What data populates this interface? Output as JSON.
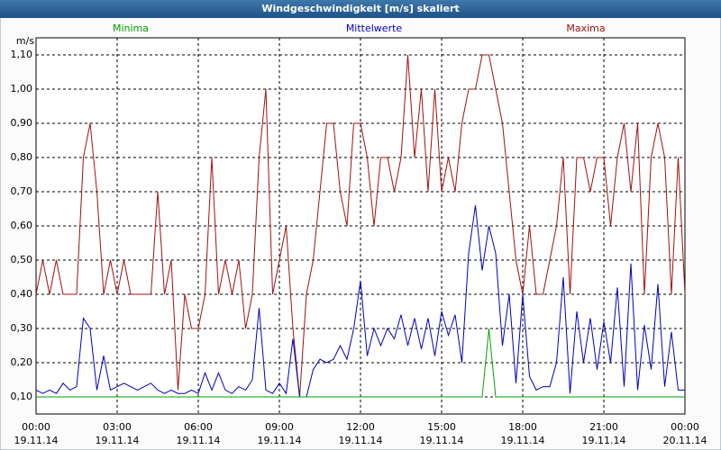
{
  "chart_data": {
    "type": "line",
    "title": "Windgeschwindigkeit [m/s] skaliert",
    "y_unit": "m/s",
    "x": [
      0,
      0.25,
      0.5,
      0.75,
      1,
      1.25,
      1.5,
      1.75,
      2,
      2.25,
      2.5,
      2.75,
      3,
      3.25,
      3.5,
      3.75,
      4,
      4.25,
      4.5,
      4.75,
      5,
      5.25,
      5.5,
      5.75,
      6,
      6.25,
      6.5,
      6.75,
      7,
      7.25,
      7.5,
      7.75,
      8,
      8.25,
      8.5,
      8.75,
      9,
      9.25,
      9.5,
      9.75,
      10,
      10.25,
      10.5,
      10.75,
      11,
      11.25,
      11.5,
      11.75,
      12,
      12.25,
      12.5,
      12.75,
      13,
      13.25,
      13.5,
      13.75,
      14,
      14.25,
      14.5,
      14.75,
      15,
      15.25,
      15.5,
      15.75,
      16,
      16.25,
      16.5,
      16.75,
      17,
      17.25,
      17.5,
      17.75,
      18,
      18.25,
      18.5,
      18.75,
      19,
      19.25,
      19.5,
      19.75,
      20,
      20.25,
      20.5,
      20.75,
      21,
      21.25,
      21.5,
      21.75,
      22,
      22.25,
      22.5,
      22.75,
      23,
      23.25,
      23.5,
      23.75,
      24
    ],
    "series": [
      {
        "name": "Minima",
        "color": "#00a000",
        "values": [
          0.1,
          0.1,
          0.1,
          0.1,
          0.1,
          0.1,
          0.1,
          0.1,
          0.1,
          0.1,
          0.1,
          0.1,
          0.1,
          0.1,
          0.1,
          0.1,
          0.1,
          0.1,
          0.1,
          0.1,
          0.1,
          0.1,
          0.1,
          0.1,
          0.1,
          0.1,
          0.1,
          0.1,
          0.1,
          0.1,
          0.1,
          0.1,
          0.1,
          0.1,
          0.1,
          0.1,
          0.1,
          0.1,
          0.1,
          0.1,
          0.1,
          0.1,
          0.1,
          0.1,
          0.1,
          0.1,
          0.1,
          0.1,
          0.1,
          0.1,
          0.1,
          0.1,
          0.1,
          0.1,
          0.1,
          0.1,
          0.1,
          0.1,
          0.1,
          0.1,
          0.1,
          0.1,
          0.1,
          0.1,
          0.1,
          0.1,
          0.1,
          0.3,
          0.1,
          0.1,
          0.1,
          0.1,
          0.1,
          0.1,
          0.1,
          0.1,
          0.1,
          0.1,
          0.1,
          0.1,
          0.1,
          0.1,
          0.1,
          0.1,
          0.1,
          0.1,
          0.1,
          0.1,
          0.1,
          0.1,
          0.1,
          0.1,
          0.1,
          0.1,
          0.1,
          0.1,
          0.1
        ]
      },
      {
        "name": "Mittelwerte",
        "color": "#0000c0",
        "values": [
          0.12,
          0.11,
          0.12,
          0.11,
          0.14,
          0.12,
          0.13,
          0.33,
          0.3,
          0.12,
          0.22,
          0.12,
          0.13,
          0.14,
          0.13,
          0.12,
          0.13,
          0.14,
          0.12,
          0.11,
          0.12,
          0.11,
          0.11,
          0.12,
          0.11,
          0.17,
          0.12,
          0.17,
          0.12,
          0.11,
          0.13,
          0.12,
          0.15,
          0.36,
          0.12,
          0.11,
          0.14,
          0.11,
          0.27,
          0.1,
          0.1,
          0.18,
          0.21,
          0.2,
          0.21,
          0.25,
          0.21,
          0.3,
          0.44,
          0.22,
          0.3,
          0.25,
          0.3,
          0.27,
          0.34,
          0.25,
          0.33,
          0.24,
          0.33,
          0.22,
          0.35,
          0.28,
          0.34,
          0.2,
          0.52,
          0.66,
          0.47,
          0.6,
          0.52,
          0.25,
          0.4,
          0.14,
          0.4,
          0.16,
          0.12,
          0.13,
          0.13,
          0.2,
          0.45,
          0.11,
          0.35,
          0.2,
          0.33,
          0.18,
          0.32,
          0.2,
          0.42,
          0.13,
          0.49,
          0.12,
          0.31,
          0.18,
          0.43,
          0.13,
          0.29,
          0.12,
          0.12
        ]
      },
      {
        "name": "Maxima",
        "color": "#a01010",
        "values": [
          0.4,
          0.5,
          0.4,
          0.5,
          0.4,
          0.4,
          0.4,
          0.8,
          0.9,
          0.7,
          0.4,
          0.5,
          0.4,
          0.5,
          0.4,
          0.4,
          0.4,
          0.4,
          0.7,
          0.4,
          0.5,
          0.12,
          0.4,
          0.3,
          0.3,
          0.4,
          0.8,
          0.4,
          0.5,
          0.4,
          0.5,
          0.3,
          0.4,
          0.8,
          1.0,
          0.4,
          0.5,
          0.6,
          0.3,
          0.1,
          0.4,
          0.5,
          0.7,
          0.9,
          0.9,
          0.7,
          0.6,
          0.9,
          0.9,
          0.8,
          0.6,
          0.8,
          0.8,
          0.7,
          0.8,
          1.1,
          0.8,
          1.0,
          0.7,
          1.0,
          0.7,
          0.8,
          0.7,
          0.9,
          1.0,
          1.0,
          1.1,
          1.1,
          1.0,
          0.9,
          0.7,
          0.5,
          0.4,
          0.6,
          0.4,
          0.4,
          0.5,
          0.6,
          0.8,
          0.4,
          0.8,
          0.8,
          0.7,
          0.8,
          0.8,
          0.6,
          0.8,
          0.9,
          0.7,
          0.9,
          0.4,
          0.8,
          0.9,
          0.8,
          0.4,
          0.8,
          0.4
        ]
      }
    ],
    "xlim": [
      0,
      24
    ],
    "xticks": [
      {
        "value": 0,
        "label": "00:00"
      },
      {
        "value": 3,
        "label": "03:00"
      },
      {
        "value": 6,
        "label": "06:00"
      },
      {
        "value": 9,
        "label": "09:00"
      },
      {
        "value": 12,
        "label": "12:00"
      },
      {
        "value": 15,
        "label": "15:00"
      },
      {
        "value": 18,
        "label": "18:00"
      },
      {
        "value": 21,
        "label": "21:00"
      },
      {
        "value": 24,
        "label": "00:00"
      }
    ],
    "xtick_dates": [
      "19.11.14",
      "19.11.14",
      "19.11.14",
      "19.11.14",
      "19.11.14",
      "19.11.14",
      "19.11.14",
      "19.11.14",
      "20.11.14"
    ],
    "ylim": [
      0.05,
      1.15
    ],
    "yticks": [
      {
        "value": 0.1,
        "label": "0,10"
      },
      {
        "value": 0.2,
        "label": "0,20"
      },
      {
        "value": 0.3,
        "label": "0,30"
      },
      {
        "value": 0.4,
        "label": "0,40"
      },
      {
        "value": 0.5,
        "label": "0,50"
      },
      {
        "value": 0.6,
        "label": "0,60"
      },
      {
        "value": 0.7,
        "label": "0,70"
      },
      {
        "value": 0.8,
        "label": "0,80"
      },
      {
        "value": 0.9,
        "label": "0,90"
      },
      {
        "value": 1.0,
        "label": "1,00"
      },
      {
        "value": 1.1,
        "label": "1,10"
      }
    ],
    "grid": true
  }
}
